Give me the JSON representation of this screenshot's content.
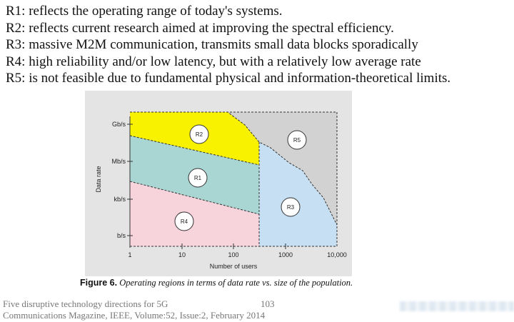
{
  "lines": [
    "R1: reflects the operating range of today's systems.",
    "R2: reflects current research aimed at improving the spectral efficiency.",
    "R3: massive M2M communication, transmits small data blocks sporadically",
    "R4: high reliability and/or low latency, but with a relatively low average rate",
    "R5: is not feasible due to fundamental physical and information-theoretical limits."
  ],
  "figure": {
    "ylabel": "Data rate",
    "xlabel": "Number of users",
    "yticks": [
      "Gb/s",
      "Mb/s",
      "kb/s",
      "b/s"
    ],
    "xticks": [
      "1",
      "10",
      "100",
      "1000",
      "10,000"
    ],
    "regions": [
      {
        "label": "R1",
        "color": "#a9d5d3"
      },
      {
        "label": "R2",
        "color": "#f8f200"
      },
      {
        "label": "R3",
        "color": "#c6dff2"
      },
      {
        "label": "R4",
        "color": "#f7d3dc"
      },
      {
        "label": "R5",
        "color": "#d2d2d2"
      }
    ]
  },
  "caption": {
    "label": "Figure 6.",
    "text": "Operating regions in terms of data rate vs. size of the population."
  },
  "footer": {
    "title": "Five disruptive technology directions for 5G",
    "page": "103",
    "citation": "Communications Magazine, IEEE, Volume:52, Issue:2, February 2014"
  }
}
